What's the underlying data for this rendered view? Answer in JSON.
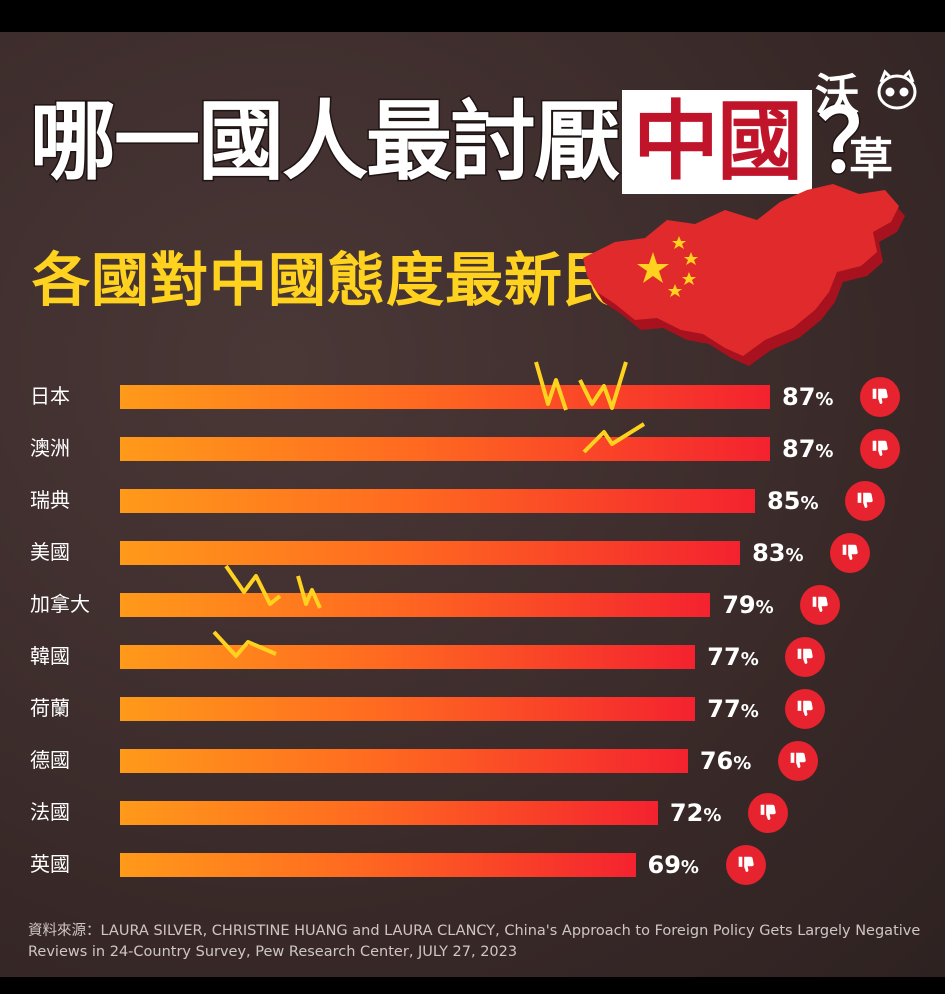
{
  "title": {
    "main": "哪一國人最討厭",
    "highlight": "中國",
    "mark": "？"
  },
  "subtitle": "各國對中國態度最新民調",
  "logo": {
    "text_top": "沃",
    "text_bottom": "草"
  },
  "colors": {
    "bar_start": "#ff9a1a",
    "bar_end": "#f4222f",
    "thumb": "#e6232e",
    "subtitle": "#ffd21f",
    "title_red": "#c0142a"
  },
  "icons": {
    "thumb": "thumbs-down-icon",
    "bolt": "lightning-bolt-icon",
    "map": "china-flag-map-icon"
  },
  "chart_data": {
    "type": "bar",
    "orientation": "horizontal",
    "categories": [
      "日本",
      "澳洲",
      "瑞典",
      "美國",
      "加拿大",
      "韓國",
      "荷蘭",
      "德國",
      "法國",
      "英國"
    ],
    "values": [
      87,
      87,
      85,
      83,
      79,
      77,
      77,
      76,
      72,
      69
    ],
    "value_labels": [
      "87",
      "87",
      "85",
      "83",
      "79",
      "77",
      "77",
      "76",
      "72",
      "69"
    ],
    "unit": "%",
    "xlim": [
      0,
      87
    ],
    "grid": false
  },
  "source": "資料來源：LAURA SILVER, CHRISTINE HUANG and LAURA CLANCY, China's Approach to Foreign Policy Gets Largely Negative Reviews in 24-Country Survey,  Pew Research Center, JULY 27, 2023"
}
